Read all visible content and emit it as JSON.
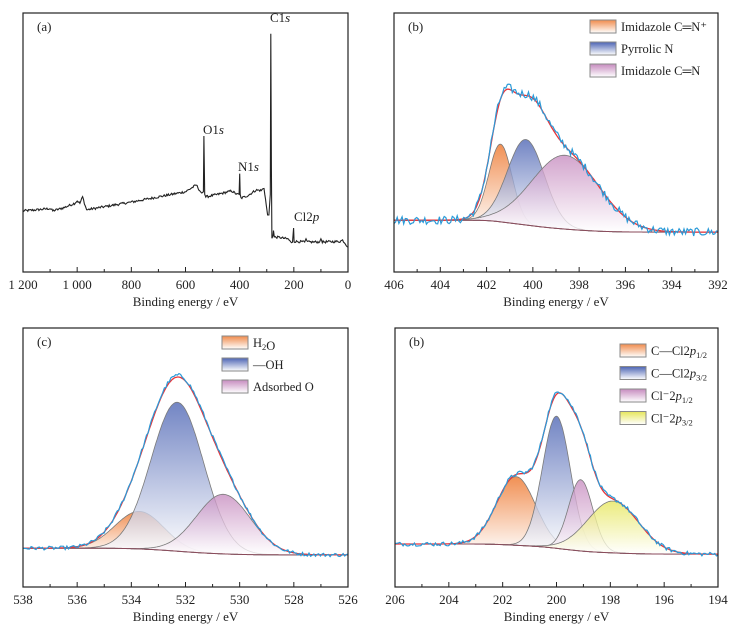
{
  "chart_data": [
    {
      "type": "line",
      "panel_label": "(a)",
      "xlabel": "Binding energy / eV",
      "ylabel": "",
      "xlim": [
        1200,
        0
      ],
      "x_reversed": true,
      "ylim": [
        0,
        100
      ],
      "y_ticks_shown": false,
      "xticks": [
        1200,
        1000,
        800,
        600,
        400,
        200,
        0
      ],
      "xtick_labels": [
        "1 200",
        "1 000",
        "800",
        "600",
        "400",
        "200",
        "0"
      ],
      "grid": false,
      "series": [
        {
          "color": "#222222",
          "points": [
            [
              1200,
              23.6
            ],
            [
              1150,
              24
            ],
            [
              1100,
              24.5
            ],
            [
              1090,
              23.6
            ],
            [
              1050,
              24.8
            ],
            [
              1010,
              26.5
            ],
            [
              1000,
              27.5
            ],
            [
              990,
              26.5
            ],
            [
              980,
              29
            ],
            [
              970,
              25.5
            ],
            [
              965,
              24
            ],
            [
              900,
              25.2
            ],
            [
              800,
              27
            ],
            [
              700,
              29
            ],
            [
              600,
              31
            ],
            [
              560,
              33.6
            ],
            [
              545,
              31
            ],
            [
              540,
              30.5
            ],
            [
              534,
              31
            ],
            [
              532,
              52.5
            ],
            [
              529,
              30
            ],
            [
              525,
              29
            ],
            [
              480,
              30
            ],
            [
              430,
              31.3
            ],
            [
              410,
              30
            ],
            [
              402,
              30
            ],
            [
              400,
              38
            ],
            [
              398,
              30
            ],
            [
              395,
              28.5
            ],
            [
              370,
              29.5
            ],
            [
              340,
              31.6
            ],
            [
              320,
              31.5
            ],
            [
              310,
              32.4
            ],
            [
              302,
              26
            ],
            [
              297,
              22
            ],
            [
              292,
              22
            ],
            [
              287,
              30
            ],
            [
              285,
              92
            ],
            [
              283,
              40
            ],
            [
              281,
              13
            ],
            [
              277,
              14
            ],
            [
              275,
              16
            ],
            [
              272,
              13.5
            ],
            [
              250,
              13.3
            ],
            [
              220,
              12.7
            ],
            [
              212,
              11.5
            ],
            [
              205,
              11.5
            ],
            [
              201,
              17
            ],
            [
              199,
              11.8
            ],
            [
              160,
              11.6
            ],
            [
              155,
              12.8
            ],
            [
              150,
              11.6
            ],
            [
              105,
              11.6
            ],
            [
              100,
              12.8
            ],
            [
              95,
              11.6
            ],
            [
              30,
              11.8
            ],
            [
              20,
              12.3
            ],
            [
              10,
              11
            ],
            [
              0,
              9.6
            ]
          ]
        }
      ],
      "annotations": [
        {
          "parts": [
            [
              "C1",
              ""
            ],
            [
              "s",
              "i"
            ]
          ],
          "x": 285
        },
        {
          "parts": [
            [
              "O1",
              ""
            ],
            [
              "s",
              "i"
            ]
          ],
          "x": 532
        },
        {
          "parts": [
            [
              "N1",
              ""
            ],
            [
              "s",
              "i"
            ]
          ],
          "x": 400
        },
        {
          "parts": [
            [
              "Cl2",
              ""
            ],
            [
              "p",
              "i"
            ]
          ],
          "x": 200
        }
      ]
    },
    {
      "type": "area",
      "panel_label": "(b)",
      "xlabel": "Binding energy / eV",
      "ylabel": "",
      "xlim": [
        406,
        392
      ],
      "x_reversed": true,
      "ylim": [
        0,
        100
      ],
      "y_ticks_shown": false,
      "xticks": [
        406,
        404,
        402,
        400,
        398,
        396,
        394,
        392
      ],
      "xtick_labels": [
        "406",
        "404",
        "402",
        "400",
        "398",
        "396",
        "394",
        "392"
      ],
      "grid": false,
      "legend_placement": "top-right",
      "baseline": [
        20,
        15.4
      ],
      "noise": 1.6,
      "components": [
        {
          "label": [
            [
              "Imidazole C═N⁺",
              ""
            ]
          ],
          "center": 401.4,
          "height": 30,
          "sigma": 0.5,
          "color": "#f08a4b"
        },
        {
          "label": [
            [
              "Pyrrolic N",
              ""
            ]
          ],
          "center": 400.3,
          "height": 33,
          "sigma": 0.8,
          "color": "#4b63b3"
        },
        {
          "label": [
            [
              "Imidazole C═N",
              ""
            ]
          ],
          "center": 398.6,
          "height": 28.5,
          "sigma": 1.45,
          "color": "#c68bbf"
        }
      ],
      "fit_color": "#e8343a",
      "data_color": "#2a9ad8",
      "baseline_color": "#8a4a5a"
    },
    {
      "type": "area",
      "panel_label": "(c)",
      "xlabel": "Binding energy / eV",
      "ylabel": "",
      "xlim": [
        538,
        526
      ],
      "x_reversed": true,
      "ylim": [
        0,
        100
      ],
      "y_ticks_shown": false,
      "xticks": [
        538,
        536,
        534,
        532,
        530,
        528,
        526
      ],
      "xtick_labels": [
        "538",
        "536",
        "534",
        "532",
        "530",
        "528",
        "526"
      ],
      "grid": false,
      "legend_placement": "top-right",
      "baseline": [
        15,
        12.4
      ],
      "noise": 0.7,
      "components": [
        {
          "label": [
            [
              "H",
              ""
            ],
            [
              "2",
              "sub"
            ],
            [
              "O",
              ""
            ]
          ],
          "center": 533.7,
          "height": 14.5,
          "sigma": 0.9,
          "color": "#f08a4b"
        },
        {
          "label": [
            [
              "—OH",
              ""
            ]
          ],
          "center": 532.3,
          "height": 57.5,
          "sigma": 0.97,
          "color": "#4b63b3"
        },
        {
          "label": [
            [
              "Adsorbed O",
              ""
            ]
          ],
          "center": 530.6,
          "height": 23,
          "sigma": 1.0,
          "color": "#c68bbf"
        }
      ],
      "fit_color": "#e8343a",
      "data_color": "#2a9ad8",
      "baseline_color": "#8a4a5a"
    },
    {
      "type": "area",
      "panel_label": "(b)",
      "xlabel": "Binding energy / eV",
      "ylabel": "",
      "xlim": [
        206,
        194
      ],
      "x_reversed": true,
      "ylim": [
        0,
        100
      ],
      "y_ticks_shown": false,
      "xticks": [
        206,
        204,
        202,
        200,
        198,
        196,
        194
      ],
      "xtick_labels": [
        "206",
        "204",
        "202",
        "200",
        "198",
        "196",
        "194"
      ],
      "grid": false,
      "legend_placement": "top-right",
      "baseline": [
        16.6,
        12.7
      ],
      "noise": 0.8,
      "components": [
        {
          "label": [
            [
              "C—Cl2",
              ""
            ],
            [
              "p",
              "i"
            ],
            [
              "1/2",
              "sub"
            ]
          ],
          "center": 201.5,
          "height": 26.5,
          "sigma": 0.72,
          "color": "#f08a4b"
        },
        {
          "label": [
            [
              "C—Cl2",
              ""
            ],
            [
              "p",
              "i"
            ],
            [
              "3/2",
              "sub"
            ]
          ],
          "center": 200.0,
          "height": 51,
          "sigma": 0.52,
          "color": "#4b63b3"
        },
        {
          "label": [
            [
              "Cl⁻2",
              ""
            ],
            [
              "p",
              "i"
            ],
            [
              "1/2",
              "sub"
            ]
          ],
          "center": 199.1,
          "height": 27.5,
          "sigma": 0.45,
          "color": "#c68bbf"
        },
        {
          "label": [
            [
              "Cl⁻2",
              ""
            ],
            [
              "p",
              "i"
            ],
            [
              "3/2",
              "sub"
            ]
          ],
          "center": 197.9,
          "height": 20,
          "sigma": 0.95,
          "color": "#e6e65a"
        }
      ],
      "fit_color": "#e8343a",
      "data_color": "#2a9ad8",
      "baseline_color": "#8a4a5a"
    }
  ]
}
